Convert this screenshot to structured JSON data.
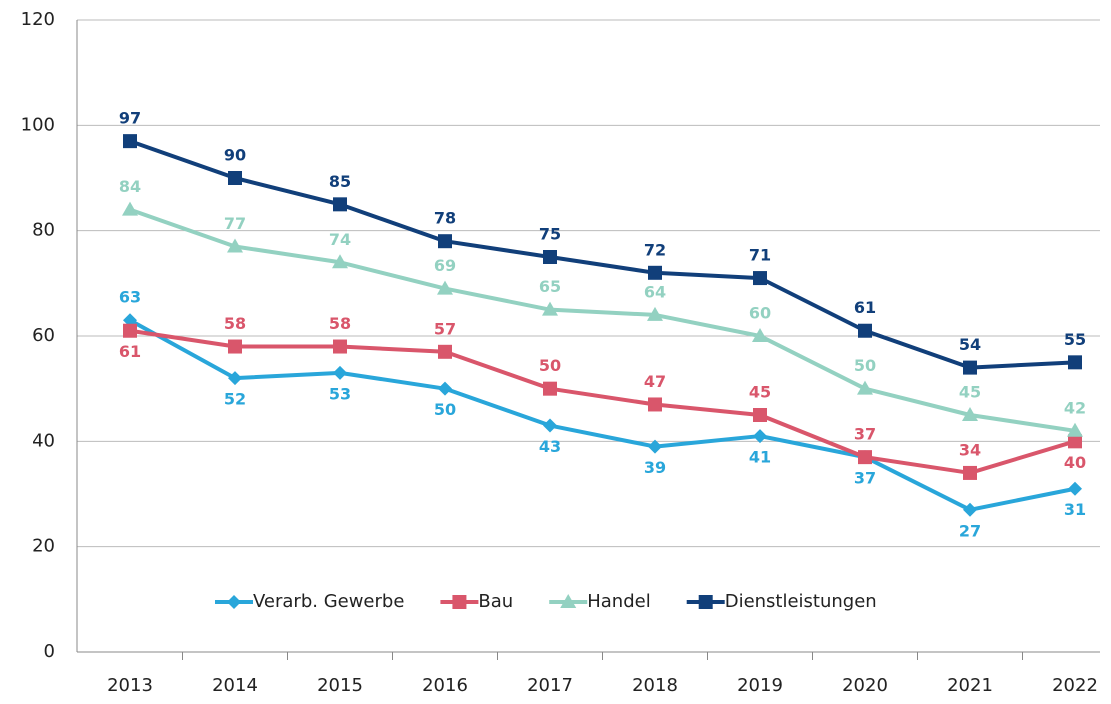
{
  "chart_data": {
    "type": "line",
    "categories": [
      "2013",
      "2014",
      "2015",
      "2016",
      "2017",
      "2018",
      "2019",
      "2020",
      "2021",
      "2022"
    ],
    "series": [
      {
        "name": "Verarb. Gewerbe",
        "color": "#29a6da",
        "marker": "diamond",
        "values": [
          63,
          52,
          53,
          50,
          43,
          39,
          41,
          37,
          27,
          31
        ]
      },
      {
        "name": "Bau",
        "color": "#d9566b",
        "marker": "square",
        "values": [
          61,
          58,
          58,
          57,
          50,
          47,
          45,
          37,
          34,
          40
        ]
      },
      {
        "name": "Handel",
        "color": "#93d1c1",
        "marker": "triangle",
        "values": [
          84,
          77,
          74,
          69,
          65,
          64,
          60,
          50,
          45,
          42
        ]
      },
      {
        "name": "Dienstleistungen",
        "color": "#113f7a",
        "marker": "square",
        "values": [
          97,
          90,
          85,
          78,
          75,
          72,
          71,
          61,
          54,
          55
        ]
      }
    ],
    "ylim": [
      0,
      120
    ],
    "yticks": [
      0,
      20,
      40,
      60,
      80,
      100,
      120
    ],
    "grid": true,
    "legend": "bottom"
  }
}
